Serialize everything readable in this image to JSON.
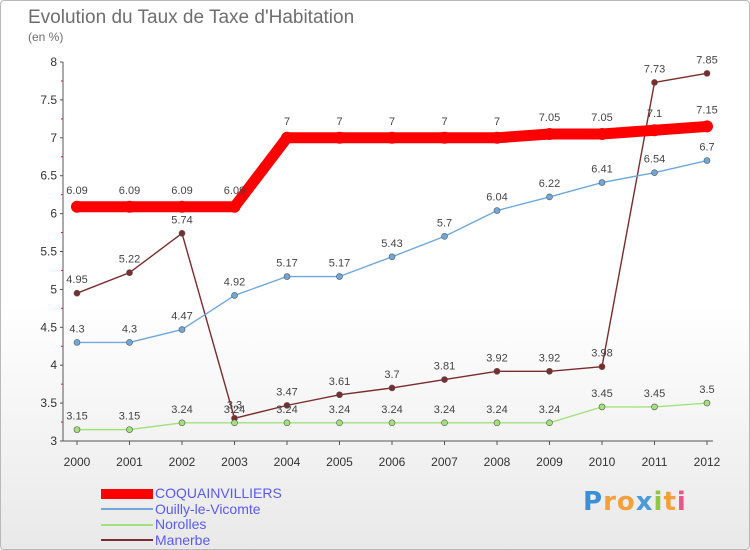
{
  "chart_data": {
    "type": "line",
    "title": "Evolution du Taux de Taxe d'Habitation",
    "subtitle": "(en %)",
    "x": [
      "2000",
      "2001",
      "2002",
      "2003",
      "2004",
      "2005",
      "2006",
      "2007",
      "2008",
      "2009",
      "2010",
      "2011",
      "2012"
    ],
    "ylim": [
      3,
      8
    ],
    "yticks": [
      "3",
      "3.5",
      "4",
      "4.5",
      "5",
      "5.5",
      "6",
      "6.5",
      "7",
      "7.5",
      "8"
    ],
    "grid": false,
    "legend_position": "bottom-left",
    "series": [
      {
        "name": "COQUAINVILLIERS",
        "color": "#ff0000",
        "values": [
          6.09,
          6.09,
          6.09,
          6.09,
          7,
          7,
          7,
          7,
          7,
          7.05,
          7.05,
          7.1,
          7.15
        ],
        "labels": [
          "6.09",
          "6.09",
          "6.09",
          "6.09",
          "7",
          "7",
          "7",
          "7",
          "7",
          "7.05",
          "7.05",
          "7.1",
          "7.15"
        ]
      },
      {
        "name": "Ouilly-le-Vicomte",
        "color": "#6ea8dc",
        "values": [
          4.3,
          4.3,
          4.47,
          4.92,
          5.17,
          5.17,
          5.43,
          5.7,
          6.04,
          6.22,
          6.41,
          6.54,
          6.7
        ],
        "labels": [
          "4.3",
          "4.3",
          "4.47",
          "4.92",
          "5.17",
          "5.17",
          "5.43",
          "5.7",
          "6.04",
          "6.22",
          "6.41",
          "6.54",
          "6.7"
        ]
      },
      {
        "name": "Norolles",
        "color": "#a2e27c",
        "values": [
          3.15,
          3.15,
          3.24,
          3.24,
          3.24,
          3.24,
          3.24,
          3.24,
          3.24,
          3.24,
          3.45,
          3.45,
          3.5
        ],
        "labels": [
          "3.15",
          "3.15",
          "3.24",
          "3.24",
          "3.24",
          "3.24",
          "3.24",
          "3.24",
          "3.24",
          "3.24",
          "3.45",
          "3.45",
          "3.5"
        ]
      },
      {
        "name": "Manerbe",
        "color": "#7b2c2c",
        "values": [
          4.95,
          5.22,
          5.74,
          3.3,
          3.47,
          3.61,
          3.7,
          3.81,
          3.92,
          3.92,
          3.98,
          7.73,
          7.85
        ],
        "labels": [
          "4.95",
          "5.22",
          "5.74",
          "3.3",
          "3.47",
          "3.61",
          "3.7",
          "3.81",
          "3.92",
          "3.92",
          "3.98",
          "7.73",
          "7.85"
        ]
      }
    ]
  },
  "logo": {
    "text": [
      "P",
      "r",
      "o",
      "x",
      "i",
      "t",
      "i"
    ],
    "colors": [
      "#3a8fd6",
      "#f2a03b",
      "#f2a03b",
      "#4b9bd9",
      "#90c640",
      "#f2a03b",
      "#e9568d"
    ]
  }
}
